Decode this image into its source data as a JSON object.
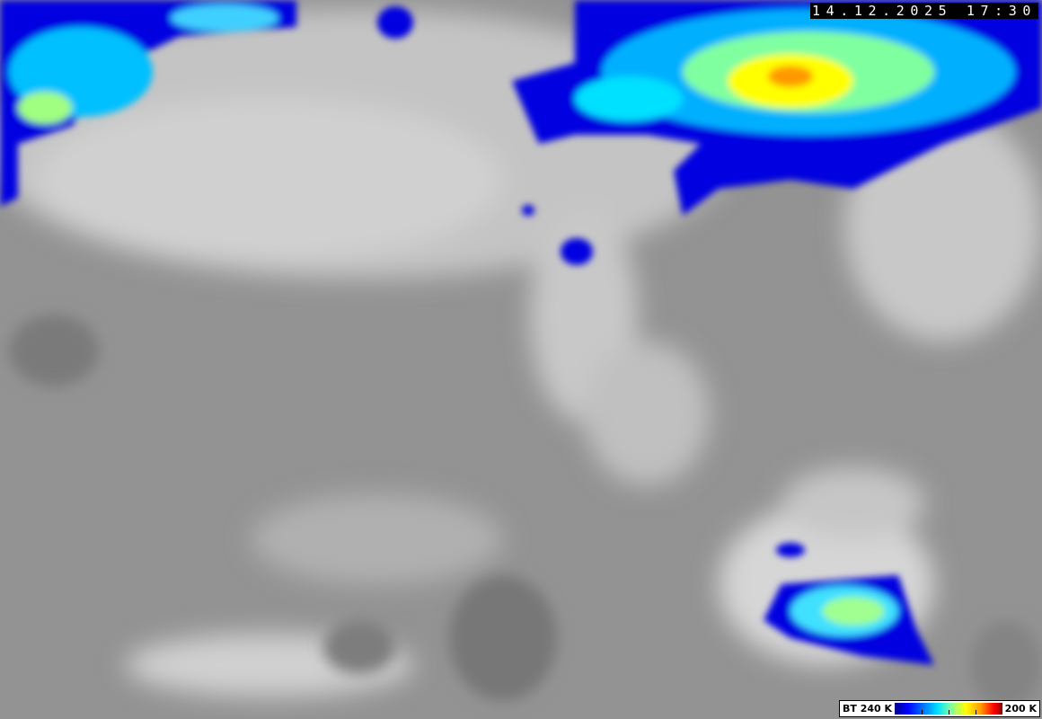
{
  "timestamp": "14.12.2025 17:30",
  "legend": {
    "low_label": "BT 240 K",
    "high_label": "200 K",
    "colors": [
      "#00008b",
      "#0000ff",
      "#0080ff",
      "#00e0ff",
      "#80ffa0",
      "#ffff00",
      "#ff9900",
      "#ff0000",
      "#8b0000"
    ]
  }
}
